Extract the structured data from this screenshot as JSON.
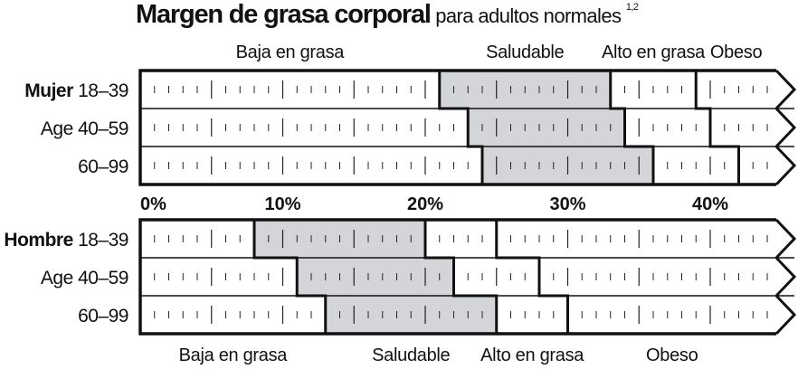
{
  "title": {
    "main": "Margen de grasa corporal",
    "sub": "para adultos normales",
    "footnote": "1,2"
  },
  "chart_data": [
    {
      "type": "bar",
      "orientation": "horizontal",
      "subtype": "stacked-range",
      "group": "Mujer",
      "categories": [
        "18–39",
        "Age 40–59",
        "60–99"
      ],
      "category_prefix": "Mujer",
      "zones": [
        "Baja en grasa",
        "Saludable",
        "Alto en grasa",
        "Obeso"
      ],
      "zone_labels_position": "top",
      "boundaries": [
        {
          "category": "18–39",
          "healthy_from": 21,
          "high_from": 33,
          "obese_from": 39
        },
        {
          "category": "Age 40–59",
          "healthy_from": 23,
          "high_from": 34,
          "obese_from": 40
        },
        {
          "category": "60–99",
          "healthy_from": 24,
          "high_from": 36,
          "obese_from": 42
        }
      ],
      "xlim": [
        0,
        45
      ],
      "unit": "%"
    },
    {
      "type": "bar",
      "orientation": "horizontal",
      "subtype": "stacked-range",
      "group": "Hombre",
      "categories": [
        "18–39",
        "Age 40–59",
        "60–99"
      ],
      "category_prefix": "Hombre",
      "zones": [
        "Baja en grasa",
        "Saludable",
        "Alto en grasa",
        "Obeso"
      ],
      "zone_labels_position": "bottom",
      "boundaries": [
        {
          "category": "18–39",
          "healthy_from": 8,
          "high_from": 20,
          "obese_from": 25
        },
        {
          "category": "Age 40–59",
          "healthy_from": 11,
          "high_from": 22,
          "obese_from": 28
        },
        {
          "category": "60–99",
          "healthy_from": 13,
          "high_from": 25,
          "obese_from": 30
        }
      ],
      "xlim": [
        0,
        45
      ],
      "unit": "%"
    }
  ],
  "axis": {
    "ticks": [
      {
        "value": 0,
        "label": "0%"
      },
      {
        "value": 10,
        "label": "10%"
      },
      {
        "value": 20,
        "label": "20%"
      },
      {
        "value": 30,
        "label": "30%"
      },
      {
        "value": 40,
        "label": "40%"
      }
    ]
  },
  "colors": {
    "healthy_fill": "#d4d5d9",
    "outline": "#111111",
    "tick": "#222222"
  }
}
